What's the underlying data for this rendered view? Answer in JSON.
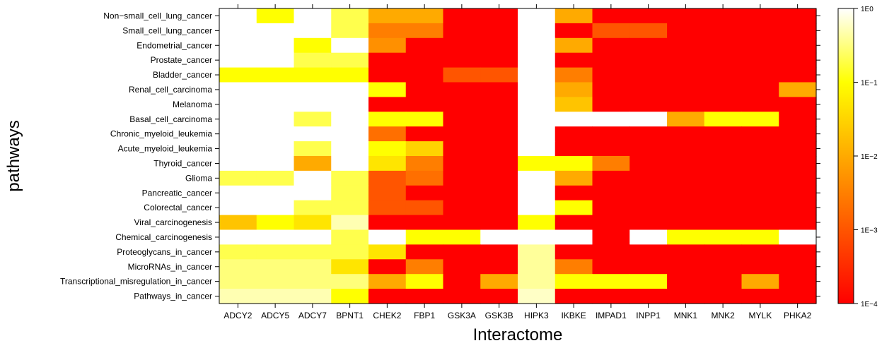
{
  "chart_data": {
    "type": "heatmap",
    "xlabel": "Interactome",
    "ylabel": "pathways",
    "x_categories": [
      "ADCY2",
      "ADCY5",
      "ADCY7",
      "BPNT1",
      "CHEK2",
      "FBP1",
      "GSK3A",
      "GSK3B",
      "HIPK3",
      "IKBKE",
      "IMPAD1",
      "INPP1",
      "MNK1",
      "MNK2",
      "MYLK",
      "PHKA2"
    ],
    "y_categories": [
      "Non−small_cell_lung_cancer",
      "Small_cell_lung_cancer",
      "Endometrial_cancer",
      "Prostate_cancer",
      "Bladder_cancer",
      "Renal_cell_carcinoma",
      "Melanoma",
      "Basal_cell_carcinoma",
      "Chronic_myeloid_leukemia",
      "Acute_myeloid_leukemia",
      "Thyroid_cancer",
      "Glioma",
      "Pancreatic_cancer",
      "Colorectal_cancer",
      "Viral_carcinogenesis",
      "Chemical_carcinogenesis",
      "Proteoglycans_in_cancer",
      "MicroRNAs_in_cancer",
      "Transcriptional_misregulation_in_cancer",
      "Pathways_in_cancer"
    ],
    "colorbar": {
      "scale": "log10",
      "range": [
        0.0001,
        1
      ],
      "tick_values": [
        1,
        0.1,
        0.01,
        0.001,
        0.0001
      ],
      "tick_labels": [
        "1E0",
        "1E−1",
        "1E−2",
        "1E−3",
        "1E−4"
      ],
      "palette": "heat (red → orange → yellow → white)"
    },
    "value_note": "p-values estimated from cell colors (log10 color scale)",
    "values": [
      [
        1,
        0.1,
        1,
        0.2,
        0.01,
        0.01,
        0.0001,
        0.0001,
        1,
        0.01,
        0.0001,
        0.0001,
        0.0001,
        0.0001,
        0.0001,
        0.0001
      ],
      [
        1,
        1,
        1,
        0.2,
        0.003,
        0.003,
        0.0001,
        0.0001,
        1,
        0.0001,
        0.001,
        0.001,
        0.0001,
        0.0001,
        0.0001,
        0.0001
      ],
      [
        1,
        1,
        0.1,
        1,
        0.005,
        0.0001,
        0.0001,
        0.0001,
        1,
        0.01,
        0.0001,
        0.0001,
        0.0001,
        0.0001,
        0.0001,
        0.0001
      ],
      [
        1,
        1,
        0.2,
        0.2,
        0.0001,
        0.0001,
        0.0001,
        0.0001,
        1,
        0.0001,
        0.0001,
        0.0001,
        0.0001,
        0.0001,
        0.0001,
        0.0001
      ],
      [
        0.1,
        0.1,
        0.1,
        0.1,
        0.0001,
        0.0001,
        0.001,
        0.001,
        1,
        0.003,
        0.0001,
        0.0001,
        0.0001,
        0.0001,
        0.0001,
        0.0001
      ],
      [
        1,
        1,
        1,
        1,
        0.1,
        0.0001,
        0.0001,
        0.0001,
        1,
        0.01,
        0.0001,
        0.0001,
        0.0001,
        0.0001,
        0.0001,
        0.01
      ],
      [
        1,
        1,
        1,
        1,
        0.0001,
        0.0001,
        0.0001,
        0.0001,
        1,
        0.02,
        0.0001,
        0.0001,
        0.0001,
        0.0001,
        0.0001,
        0.0001
      ],
      [
        1,
        1,
        0.2,
        1,
        0.1,
        0.1,
        0.0001,
        0.0001,
        1,
        1,
        1,
        1,
        0.01,
        0.1,
        0.1,
        0.0001
      ],
      [
        1,
        1,
        1,
        1,
        0.002,
        0.0001,
        0.0001,
        0.0001,
        1,
        0.0001,
        0.0001,
        0.0001,
        0.0001,
        0.0001,
        0.0001,
        0.0001
      ],
      [
        1,
        1,
        0.2,
        1,
        0.1,
        0.03,
        0.0001,
        0.0001,
        1,
        0.0001,
        0.0001,
        0.0001,
        0.0001,
        0.0001,
        0.0001,
        0.0001
      ],
      [
        1,
        1,
        0.01,
        1,
        0.05,
        0.003,
        0.0001,
        0.0001,
        0.1,
        0.1,
        0.003,
        0.0001,
        0.0001,
        0.0001,
        0.0001,
        0.0001
      ],
      [
        0.2,
        0.2,
        1,
        0.2,
        0.001,
        0.002,
        0.0001,
        0.0001,
        1,
        0.01,
        0.0001,
        0.0001,
        0.0001,
        0.0001,
        0.0001,
        0.0001
      ],
      [
        1,
        1,
        1,
        0.2,
        0.001,
        0.0001,
        0.0001,
        0.0001,
        1,
        0.0001,
        0.0001,
        0.0001,
        0.0001,
        0.0001,
        0.0001,
        0.0001
      ],
      [
        1,
        1,
        0.2,
        0.2,
        0.001,
        0.001,
        0.0001,
        0.0001,
        1,
        0.1,
        0.0001,
        0.0001,
        0.0001,
        0.0001,
        0.0001,
        0.0001
      ],
      [
        0.02,
        0.1,
        0.05,
        0.5,
        0.0001,
        0.0001,
        0.0001,
        0.0001,
        0.1,
        0.0001,
        0.0001,
        0.0001,
        0.0001,
        0.0001,
        0.0001,
        0.0001
      ],
      [
        1,
        1,
        1,
        0.2,
        1,
        0.1,
        0.1,
        1,
        1,
        1,
        0.0001,
        1,
        0.1,
        0.1,
        0.1,
        1
      ],
      [
        0.2,
        0.2,
        0.2,
        0.2,
        0.05,
        0.0001,
        0.0001,
        0.0001,
        0.4,
        0.0001,
        0.0001,
        0.0001,
        0.0001,
        0.0001,
        0.0001,
        0.0001
      ],
      [
        0.3,
        0.3,
        0.3,
        0.05,
        0.0001,
        0.003,
        0.0001,
        0.0001,
        0.4,
        0.003,
        0.0001,
        0.0001,
        0.0001,
        0.0001,
        0.0001,
        0.0001
      ],
      [
        0.3,
        0.3,
        0.3,
        0.3,
        0.01,
        0.1,
        0.0001,
        0.01,
        0.4,
        0.1,
        0.1,
        0.1,
        0.0001,
        0.0001,
        0.01,
        0.0001
      ],
      [
        0.5,
        0.5,
        0.5,
        0.1,
        0.0001,
        0.0001,
        0.0001,
        0.0001,
        0.6,
        0.0001,
        0.0001,
        0.0001,
        0.0001,
        0.0001,
        0.0001,
        0.0001
      ]
    ]
  }
}
